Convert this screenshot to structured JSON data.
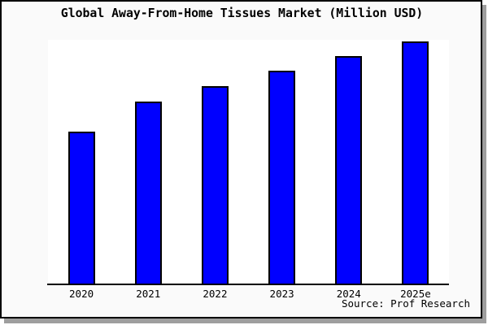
{
  "title": "Global Away-From-Home Tissues Market (Million USD)",
  "source": {
    "text": "Source: Prof Research"
  },
  "colors": {
    "bar_fill": "#0000ff",
    "bar_edge": "#000000",
    "frame_background": "#fafafa",
    "plot_background": "#ffffff",
    "frame_border": "#000000",
    "shadow": "#9e9e9e",
    "text": "#000000"
  },
  "chart_data": {
    "type": "bar",
    "title": "Global Away-From-Home Tissues Market (Million USD)",
    "categories": [
      "2020",
      "2021",
      "2022",
      "2023",
      "2024",
      "2025e"
    ],
    "values": [
      62.5,
      74.8,
      81.1,
      87.4,
      93.4,
      99.3
    ],
    "values_note": "No numeric y-axis, gridlines, or data labels are shown in the image; values are estimated bar heights as percent of plot-area height (tallest bar 2025e spans ~99% of the plot).",
    "xlabel": "",
    "ylabel": "",
    "ylim": [
      0,
      100
    ],
    "grid": false,
    "legend": false,
    "bar_color": "#0000ff",
    "bar_edge_color": "#000000",
    "source": "Source: Prof Research"
  }
}
